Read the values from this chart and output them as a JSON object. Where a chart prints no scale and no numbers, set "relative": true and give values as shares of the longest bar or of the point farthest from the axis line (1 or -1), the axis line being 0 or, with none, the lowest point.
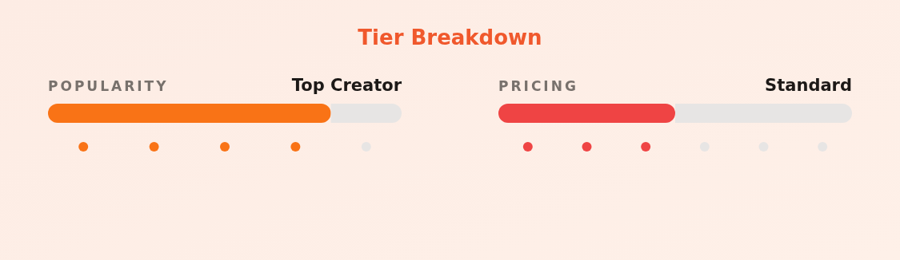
{
  "chart_data": [
    {
      "type": "other",
      "title": "Tier Breakdown"
    },
    {
      "type": "bar",
      "title": "POPULARITY",
      "subtitle": "Top Creator",
      "orientation": "horizontal",
      "stacked": true,
      "relative": true,
      "categories": [
        null
      ],
      "series": [
        {
          "color": "#f97316",
          "values": [
            0.8
          ]
        },
        {
          "color": "#e7e5e4",
          "values": [
            0.2
          ]
        }
      ]
    },
    {
      "type": "other",
      "categories": [
        null,
        null,
        null,
        null,
        null
      ],
      "colors": [
        "#f97316",
        "#f97316",
        "#f97316",
        "#f97316",
        "#e7e5e4"
      ]
    },
    {
      "type": "bar",
      "title": "PRICING",
      "subtitle": "Standard",
      "orientation": "horizontal",
      "stacked": true,
      "relative": true,
      "categories": [
        null
      ],
      "series": [
        {
          "color": "#ef4444",
          "values": [
            0.5
          ]
        },
        {
          "color": "#e7e5e4",
          "values": [
            0.5
          ]
        }
      ]
    },
    {
      "type": "other",
      "categories": [
        null,
        null,
        null,
        null,
        null,
        null
      ],
      "colors": [
        "#ef4444",
        "#ef4444",
        "#ef4444",
        "#e7e5e4",
        "#e7e5e4",
        "#e7e5e4"
      ]
    }
  ]
}
